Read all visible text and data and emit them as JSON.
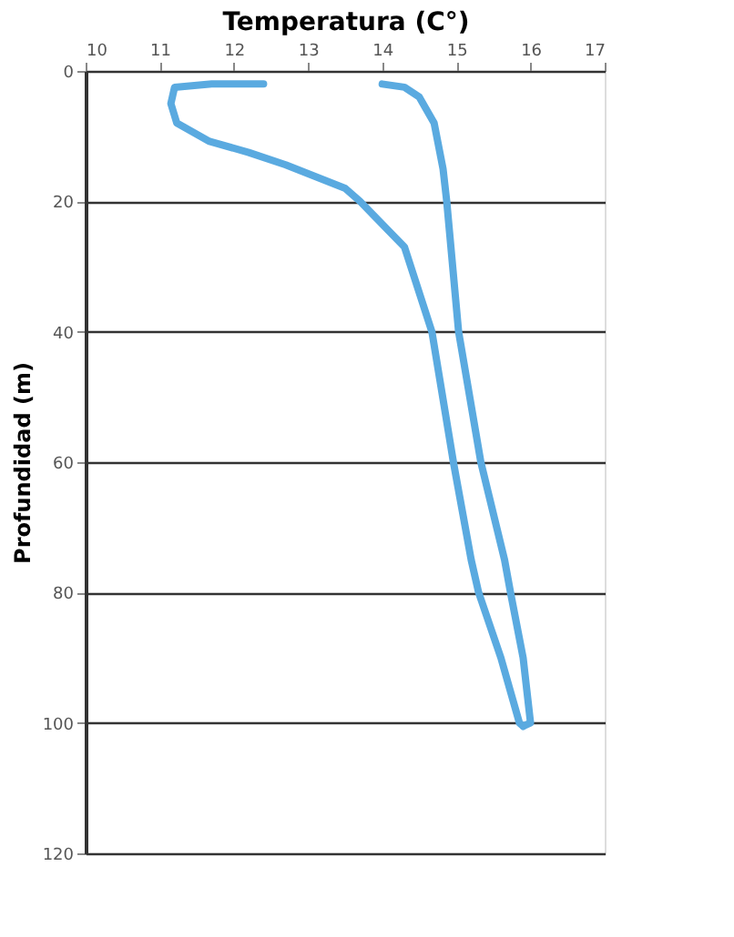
{
  "chart_data": {
    "type": "line",
    "xlabel": "Temperatura (C°)",
    "ylabel": "Profundidad (m)",
    "xlim": [
      10,
      17
    ],
    "xticks": [
      10,
      11,
      12,
      13,
      14,
      15,
      16,
      17
    ],
    "ylim": [
      120,
      0
    ],
    "yticks": [
      0,
      20,
      40,
      60,
      80,
      100,
      120
    ],
    "grid": "y",
    "line_style": "solid",
    "marker": "none",
    "series": [
      {
        "color": "#5aaae0",
        "x": [
          12.4,
          11.7,
          11.2,
          11.15,
          11.23,
          11.67,
          12.2,
          12.7,
          13.5,
          13.7,
          14.3,
          14.67,
          14.96,
          15.2,
          15.3,
          15.6,
          15.85,
          15.9
        ],
        "values": [
          2,
          2,
          2.5,
          5,
          8,
          10.8,
          12.5,
          14.4,
          18,
          20,
          27,
          40,
          60,
          75,
          80,
          90,
          100,
          100.5
        ]
      },
      {
        "color": "#5aaae0",
        "x": [
          14.0,
          14.3,
          14.5,
          14.7,
          14.82,
          14.87,
          15.03,
          15.33,
          15.65,
          15.73,
          15.9,
          16.0,
          15.9
        ],
        "values": [
          2,
          2.5,
          4,
          8,
          15,
          20,
          40,
          60,
          75,
          80,
          90,
          100,
          100.5
        ]
      }
    ]
  }
}
